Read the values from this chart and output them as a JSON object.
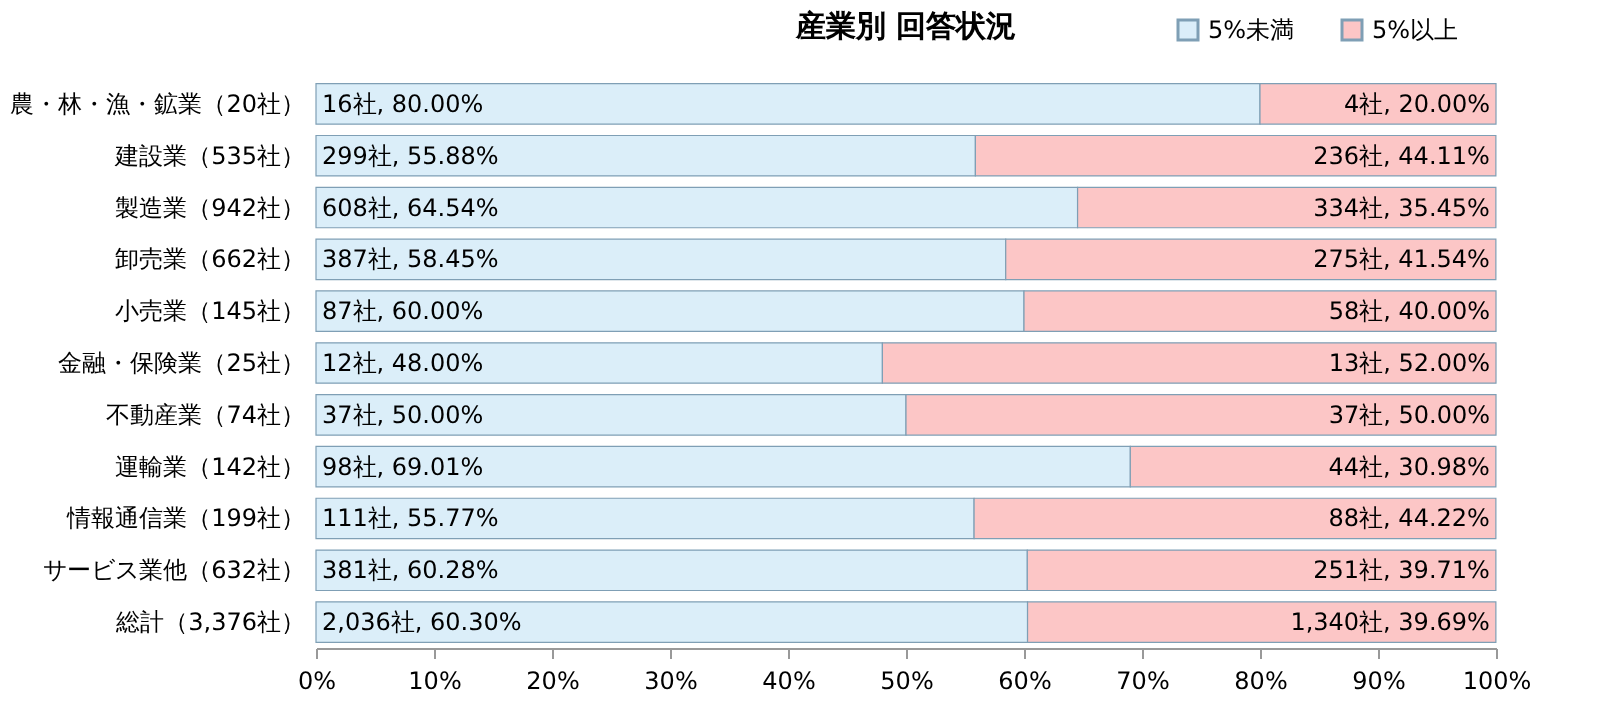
{
  "chart_data": {
    "type": "bar",
    "orientation": "horizontal",
    "stacked": true,
    "title": "産業別 回答状況",
    "legend": "top right",
    "categories": [
      "農・林・漁・鉱業（20社）",
      "建設業（535社）",
      "製造業（942社）",
      "卸売業（662社）",
      "小売業（145社）",
      "金融・保険業（25社）",
      "不動産業（74社）",
      "運輸業（142社）",
      "情報通信業（199社）",
      "サービス業他（632社）",
      "総計（3,376社）"
    ],
    "series": [
      {
        "name": "5%未満",
        "color": "#dbeef9",
        "values": [
          80.0,
          55.88,
          64.54,
          58.45,
          60.0,
          48.0,
          50.0,
          69.01,
          55.77,
          60.28,
          60.3
        ],
        "value_labels": [
          "16社, 80.00%",
          "299社, 55.88%",
          "608社, 64.54%",
          "387社, 58.45%",
          "87社, 60.00%",
          "12社, 48.00%",
          "37社, 50.00%",
          "98社, 69.01%",
          "111社, 55.77%",
          "381社, 60.28%",
          "2,036社, 60.30%"
        ]
      },
      {
        "name": "5%以上",
        "color": "#fcc6c6",
        "values": [
          20.0,
          44.11,
          35.45,
          41.54,
          40.0,
          52.0,
          50.0,
          30.98,
          44.22,
          39.71,
          39.69
        ],
        "value_labels": [
          "4社, 20.00%",
          "236社, 44.11%",
          "334社, 35.45%",
          "275社, 41.54%",
          "58社, 40.00%",
          "13社, 52.00%",
          "37社, 50.00%",
          "44社, 30.98%",
          "88社, 44.22%",
          "251社, 39.71%",
          "1,340社, 39.69%"
        ]
      }
    ],
    "xlim": [
      0,
      100
    ],
    "xticks": [
      {
        "value": 0,
        "label": "0%"
      },
      {
        "value": 10,
        "label": "10%"
      },
      {
        "value": 20,
        "label": "20%"
      },
      {
        "value": 30,
        "label": "30%"
      },
      {
        "value": 40,
        "label": "40%"
      },
      {
        "value": 50,
        "label": "50%"
      },
      {
        "value": 60,
        "label": "60%"
      },
      {
        "value": 70,
        "label": "70%"
      },
      {
        "value": 80,
        "label": "80%"
      },
      {
        "value": 90,
        "label": "90%"
      },
      {
        "value": 100,
        "label": "100%"
      }
    ]
  }
}
